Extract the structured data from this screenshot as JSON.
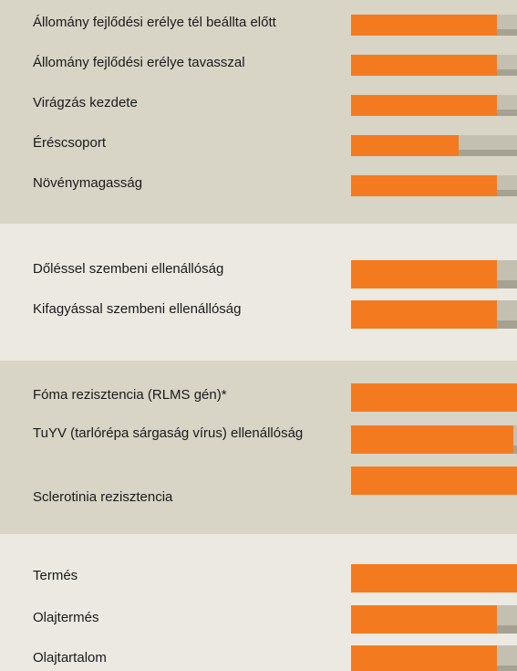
{
  "chart_data": {
    "type": "bar",
    "categories": [
      "Állomány fejlődési erélye tél beállta előtt",
      "Állomány fejlődési erélye tavasszal",
      "Virágzás kezdete",
      "Éréscsoport",
      "Növénymagasság",
      "Dőléssel szembeni ellenállóság",
      "Kifagyással szembeni ellenállóság",
      "Fóma rezisztencia (RLMS gén)*",
      "TuYV (tarlórépa sárgaság vírus) ellenállóság",
      "Sclerotinia rezisztencia",
      "Termés",
      "Olajtermés",
      "Olajtartalom"
    ],
    "values": [
      88,
      88,
      88,
      65,
      88,
      88,
      88,
      100,
      98,
      100,
      100,
      88,
      88
    ],
    "xlim": [
      0,
      100
    ],
    "color": "#f47a20"
  }
}
